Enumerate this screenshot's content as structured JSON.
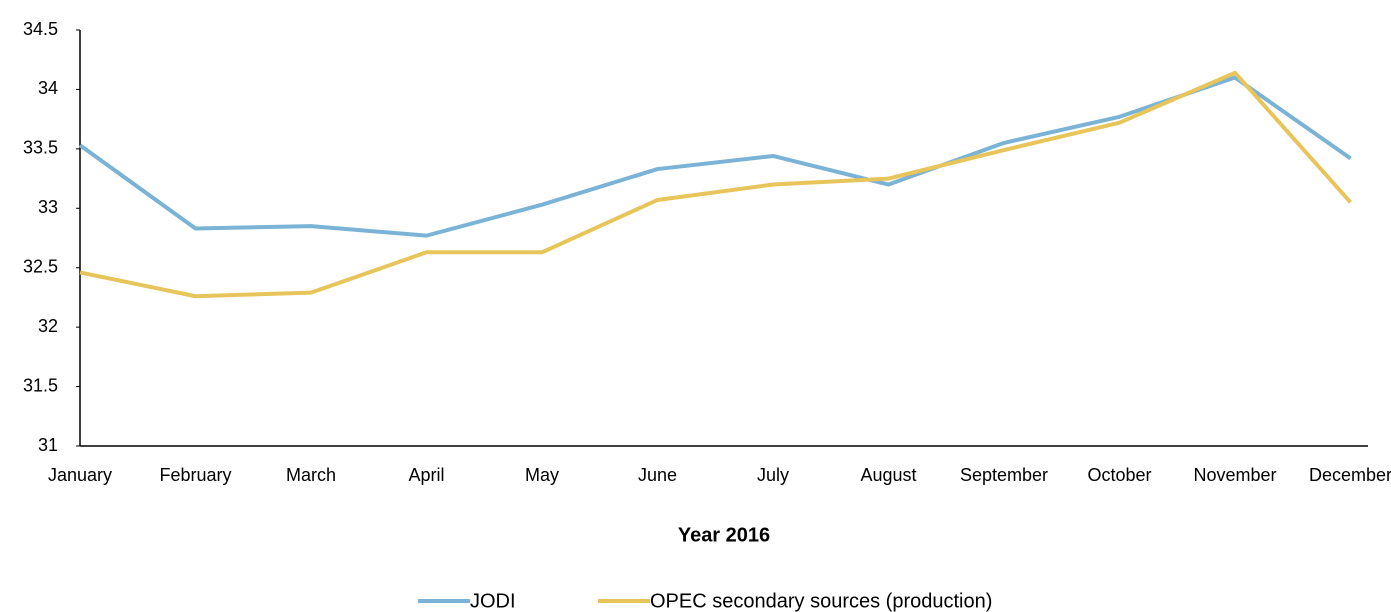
{
  "chart_data": {
    "type": "line",
    "xlabel": "Year 2016",
    "categories": [
      "January",
      "February",
      "March",
      "April",
      "May",
      "June",
      "July",
      "August",
      "September",
      "October",
      "November",
      "December"
    ],
    "series": [
      {
        "name": "JODI",
        "color": "#7ab3d6",
        "values": [
          33.53,
          32.83,
          32.85,
          32.77,
          33.03,
          33.33,
          33.44,
          33.2,
          33.55,
          33.77,
          34.1,
          33.42
        ]
      },
      {
        "name": "OPEC secondary sources (production)",
        "color": "#e8c55a",
        "values": [
          32.46,
          32.26,
          32.29,
          32.63,
          32.63,
          33.07,
          33.2,
          33.25,
          33.49,
          33.72,
          34.14,
          33.05
        ]
      }
    ],
    "ylim": [
      31,
      34.5
    ],
    "yticks": [
      31,
      31.5,
      32,
      32.5,
      33,
      33.5,
      34,
      34.5
    ],
    "grid": false,
    "legend": "bottom"
  }
}
